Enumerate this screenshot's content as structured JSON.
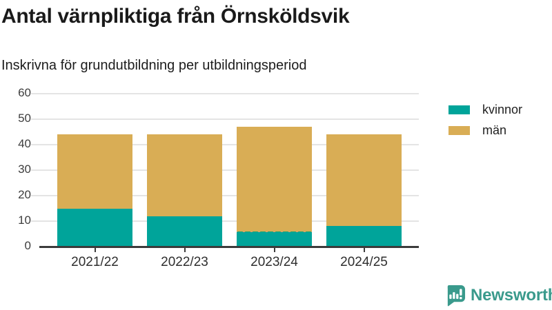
{
  "title": "Antal värnpliktiga från Örnsköldsvik",
  "subtitle": "Inskrivna för grundutbildning per utbildningsperiod",
  "colors": {
    "kvinnor": "#00a49a",
    "man": "#d9ad55",
    "axis": "#3b3b3b",
    "grid": "#e4e4e4",
    "brand": "#3a9a8c"
  },
  "legend": [
    {
      "label": "kvinnor",
      "color": "#00a49a"
    },
    {
      "label": "män",
      "color": "#d9ad55"
    }
  ],
  "chart_data": {
    "type": "bar",
    "stacked": true,
    "title": "Antal värnpliktiga från Örnsköldsvik",
    "subtitle": "Inskrivna för grundutbildning per utbildningsperiod",
    "categories": [
      "2021/22",
      "2022/23",
      "2023/24",
      "2024/25"
    ],
    "series": [
      {
        "name": "kvinnor",
        "color": "#00a49a",
        "values": [
          15,
          12,
          6,
          8
        ]
      },
      {
        "name": "män",
        "color": "#d9ad55",
        "values": [
          29,
          32,
          41,
          36
        ]
      }
    ],
    "totals": [
      44,
      44,
      47,
      44
    ],
    "xlabel": "",
    "ylabel": "",
    "ylim": [
      0,
      60
    ],
    "yticks": [
      0,
      10,
      20,
      30,
      40,
      50,
      60
    ],
    "grid": true,
    "legend_position": "right",
    "rough_boundary_category": "2023/24"
  },
  "branding": {
    "logo_text": "Newsworthy"
  }
}
